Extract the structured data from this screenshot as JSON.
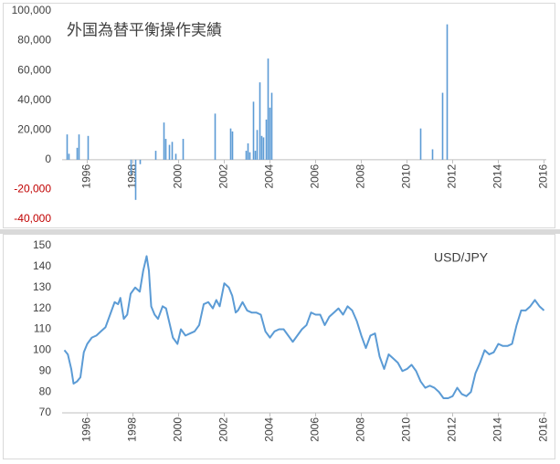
{
  "chart_data": [
    {
      "type": "bar",
      "title": "外国為替平衡操作実績",
      "color": "#5b9bd5",
      "negative_tick_color": "#c00000",
      "grid": false,
      "x": [
        1995.12,
        1995.2,
        1995.56,
        1995.64,
        1996.04,
        1997.92,
        1998.12,
        1998.32,
        1999.0,
        1999.36,
        1999.44,
        1999.6,
        1999.72,
        1999.88,
        2000.2,
        2001.6,
        2002.28,
        2002.36,
        2002.96,
        2003.04,
        2003.12,
        2003.28,
        2003.36,
        2003.44,
        2003.56,
        2003.64,
        2003.72,
        2003.84,
        2003.92,
        2004.0,
        2004.08,
        2010.6,
        2011.12,
        2011.56,
        2011.76
      ],
      "values": [
        17000,
        4000,
        8000,
        17000,
        16000,
        -10000,
        -27000,
        -3000,
        6000,
        25000,
        14000,
        10000,
        12000,
        4000,
        14000,
        31000,
        21000,
        19000,
        6000,
        11000,
        5000,
        39000,
        6000,
        20000,
        52000,
        16000,
        15000,
        27000,
        68000,
        35000,
        45000,
        21000,
        7000,
        45000,
        91000
      ],
      "xlim": [
        1994.9,
        2016.1
      ],
      "xticks": [
        1996,
        1998,
        2000,
        2002,
        2004,
        2006,
        2008,
        2010,
        2012,
        2014,
        2016
      ],
      "ylim": [
        -40000,
        100000
      ],
      "yticks": [
        {
          "value": -40000,
          "label": "-40,000"
        },
        {
          "value": -20000,
          "label": "-20,000"
        },
        0,
        {
          "value": 20000,
          "label": "20,000"
        },
        {
          "value": 40000,
          "label": "40,000"
        },
        {
          "value": 60000,
          "label": "60,000"
        },
        {
          "value": 80000,
          "label": "80,000"
        },
        {
          "value": 100000,
          "label": "100,000"
        }
      ]
    },
    {
      "type": "line",
      "annotation": "USD/JPY",
      "color": "#5b9bd5",
      "grid": false,
      "x": [
        1995.0,
        1995.15,
        1995.3,
        1995.4,
        1995.55,
        1995.7,
        1995.85,
        1996.0,
        1996.2,
        1996.4,
        1996.6,
        1996.8,
        1997.0,
        1997.2,
        1997.35,
        1997.45,
        1997.6,
        1997.75,
        1997.9,
        1998.1,
        1998.3,
        1998.45,
        1998.6,
        1998.7,
        1998.8,
        1998.95,
        1999.1,
        1999.3,
        1999.45,
        1999.6,
        1999.75,
        1999.95,
        2000.1,
        2000.3,
        2000.5,
        2000.7,
        2000.9,
        2001.1,
        2001.3,
        2001.5,
        2001.65,
        2001.8,
        2002.0,
        2002.2,
        2002.35,
        2002.5,
        2002.6,
        2002.8,
        2003.0,
        2003.2,
        2003.4,
        2003.6,
        2003.8,
        2004.0,
        2004.2,
        2004.4,
        2004.6,
        2004.8,
        2005.0,
        2005.2,
        2005.4,
        2005.6,
        2005.8,
        2006.0,
        2006.2,
        2006.4,
        2006.6,
        2006.8,
        2007.0,
        2007.2,
        2007.4,
        2007.6,
        2007.8,
        2008.0,
        2008.2,
        2008.4,
        2008.6,
        2008.8,
        2009.0,
        2009.2,
        2009.4,
        2009.6,
        2009.8,
        2010.0,
        2010.2,
        2010.4,
        2010.6,
        2010.8,
        2011.0,
        2011.2,
        2011.4,
        2011.6,
        2011.8,
        2012.0,
        2012.2,
        2012.4,
        2012.6,
        2012.8,
        2013.0,
        2013.2,
        2013.4,
        2013.6,
        2013.8,
        2014.0,
        2014.2,
        2014.4,
        2014.6,
        2014.8,
        2015.0,
        2015.2,
        2015.4,
        2015.6,
        2015.8,
        2016.0
      ],
      "values": [
        100,
        98,
        91,
        84,
        85,
        87,
        99,
        103,
        106,
        107,
        109,
        111,
        117,
        123,
        122,
        125,
        115,
        117,
        127,
        130,
        128,
        138,
        145,
        138,
        121,
        117,
        115,
        121,
        120,
        113,
        106,
        103,
        110,
        107,
        108,
        109,
        112,
        122,
        123,
        120,
        124,
        121,
        132,
        130,
        126,
        118,
        119,
        123,
        119,
        118,
        118,
        117,
        109,
        106,
        109,
        110,
        110,
        107,
        104,
        107,
        110,
        112,
        118,
        117,
        117,
        112,
        116,
        118,
        120,
        117,
        121,
        119,
        114,
        107,
        101,
        107,
        108,
        97,
        91,
        98,
        96,
        94,
        90,
        91,
        93,
        90,
        85,
        82,
        83,
        82,
        80,
        77,
        77,
        78,
        82,
        79,
        78,
        80,
        89,
        94,
        100,
        98,
        99,
        103,
        102,
        102,
        103,
        112,
        119,
        119,
        121,
        124,
        121,
        119
      ],
      "xlim": [
        1994.9,
        2016.1
      ],
      "xticks": [
        1996,
        1998,
        2000,
        2002,
        2004,
        2006,
        2008,
        2010,
        2012,
        2014,
        2016
      ],
      "ylim": [
        70,
        150
      ],
      "yticks": [
        70,
        80,
        90,
        100,
        110,
        120,
        130,
        140,
        150
      ]
    }
  ]
}
